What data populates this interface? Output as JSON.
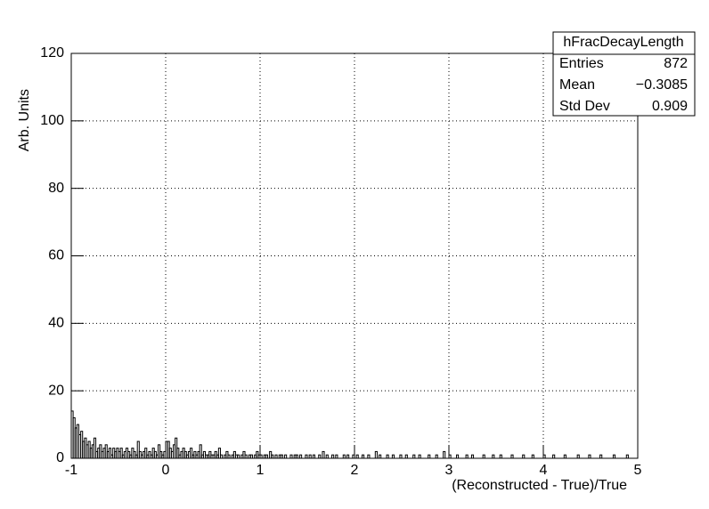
{
  "chart_data": {
    "type": "histogram",
    "xlabel": "(Reconstructed - True)/True",
    "ylabel": "Arb. Units",
    "xlim": [
      -1,
      5
    ],
    "ylim": [
      0,
      120
    ],
    "xticks": [
      -1,
      0,
      1,
      2,
      3,
      4,
      5
    ],
    "yticks": [
      0,
      20,
      40,
      60,
      80,
      100,
      120
    ],
    "grid": true,
    "color": "#000000",
    "stats": {
      "title": "hFracDecayLength",
      "rows": [
        {
          "label": "Entries",
          "value": "872"
        },
        {
          "label": "Mean",
          "value": "−0.3085"
        },
        {
          "label": "Std Dev",
          "value": "0.909"
        }
      ]
    },
    "bins": [
      -1,
      -0.98,
      -0.96,
      -0.94,
      -0.92,
      -0.9,
      -0.88,
      -0.86,
      -0.84,
      -0.82,
      -0.8,
      -0.78,
      -0.76,
      -0.74,
      -0.72,
      -0.7,
      -0.68,
      -0.66,
      -0.64,
      -0.62,
      -0.6,
      -0.58,
      -0.56,
      -0.54,
      -0.52,
      -0.5,
      -0.48,
      -0.46,
      -0.44,
      -0.42,
      -0.4,
      -0.38,
      -0.36,
      -0.34,
      -0.32,
      -0.3,
      -0.28,
      -0.26,
      -0.24,
      -0.22,
      -0.2,
      -0.18,
      -0.16,
      -0.14,
      -0.12,
      -0.1,
      -0.08,
      -0.06,
      -0.04,
      -0.02,
      0,
      0.02,
      0.04,
      0.06,
      0.08,
      0.1,
      0.12,
      0.14,
      0.16,
      0.18,
      0.2,
      0.22,
      0.24,
      0.26,
      0.28,
      0.3,
      0.32,
      0.34,
      0.36,
      0.38,
      0.4,
      0.42,
      0.44,
      0.46,
      0.48,
      0.5,
      0.52,
      0.54,
      0.56,
      0.58,
      0.6,
      0.62,
      0.64,
      0.66,
      0.68,
      0.7,
      0.72,
      0.74,
      0.76,
      0.78,
      0.8,
      0.82,
      0.84,
      0.86,
      0.88,
      0.9,
      0.92,
      0.94,
      0.96,
      0.98,
      1,
      1.02,
      1.04,
      1.06,
      1.08,
      1.1,
      1.12,
      1.14,
      1.16,
      1.18,
      1.2,
      1.22,
      1.24,
      1.26,
      1.28,
      1.3,
      1.32,
      1.34,
      1.36,
      1.38,
      1.4,
      1.42,
      1.44,
      1.46,
      1.48,
      1.5,
      1.52,
      1.54,
      1.56,
      1.58,
      1.6,
      1.62,
      1.64,
      1.66,
      1.68,
      1.7,
      1.72,
      1.74,
      1.76,
      1.78,
      1.8,
      1.82,
      1.84,
      1.86,
      1.88,
      1.9,
      1.92,
      1.94,
      1.96,
      1.98,
      2,
      2.02,
      2.04,
      2.06,
      2.08,
      2.1,
      2.12,
      2.14,
      2.16,
      2.18,
      2.2,
      2.22,
      2.24,
      2.26,
      2.28,
      2.3,
      2.32,
      2.34,
      2.36,
      2.38,
      2.4,
      2.42,
      2.44,
      2.46,
      2.48,
      2.5,
      2.52,
      2.54,
      2.56,
      2.58,
      2.6,
      2.62,
      2.64,
      2.66,
      2.68,
      2.7,
      2.72,
      2.74,
      2.76,
      2.78,
      2.8,
      2.82,
      2.84,
      2.86,
      2.88,
      2.9,
      2.92,
      2.94,
      2.96,
      2.98,
      3,
      3.02,
      3.04,
      3.06,
      3.08,
      3.1,
      3.12,
      3.14,
      3.16,
      3.18,
      3.2,
      3.22,
      3.24,
      3.26,
      3.28,
      3.3,
      3.32,
      3.34,
      3.36,
      3.38,
      3.4,
      3.42,
      3.44,
      3.46,
      3.48,
      3.5,
      3.52,
      3.54,
      3.56,
      3.58,
      3.6,
      3.62,
      3.64,
      3.66,
      3.68,
      3.7,
      3.72,
      3.74,
      3.76,
      3.78,
      3.8,
      3.82,
      3.84,
      3.86,
      3.88,
      3.9,
      3.92,
      3.94,
      3.96,
      3.98,
      4,
      4.02,
      4.04,
      4.06,
      4.08,
      4.1,
      4.12,
      4.14,
      4.16,
      4.18,
      4.2,
      4.22,
      4.24,
      4.26,
      4.28,
      4.3,
      4.32,
      4.34,
      4.36,
      4.38,
      4.4,
      4.42,
      4.44,
      4.46,
      4.48,
      4.5,
      4.52,
      4.54,
      4.56,
      4.58,
      4.6,
      4.62,
      4.64,
      4.66,
      4.68,
      4.7,
      4.72,
      4.74,
      4.76,
      4.78,
      4.8,
      4.82,
      4.84,
      4.86,
      4.88,
      4.9,
      4.92,
      4.94,
      4.96,
      4.98,
      5
    ],
    "values": [
      14,
      12,
      9,
      10,
      7,
      8,
      5,
      6,
      4,
      5,
      3,
      4,
      6,
      2,
      3,
      4,
      2,
      3,
      4,
      2,
      3,
      1,
      3,
      2,
      3,
      2,
      3,
      1,
      2,
      3,
      2,
      1,
      3,
      2,
      1,
      5,
      2,
      1,
      2,
      3,
      1,
      2,
      1,
      3,
      2,
      1,
      4,
      2,
      1,
      2,
      5,
      5,
      3,
      2,
      4,
      6,
      3,
      1,
      2,
      3,
      2,
      1,
      2,
      3,
      1,
      2,
      1,
      2,
      4,
      1,
      2,
      1,
      1,
      2,
      1,
      1,
      2,
      1,
      3,
      1,
      0,
      1,
      2,
      1,
      0,
      1,
      2,
      1,
      1,
      0,
      1,
      2,
      1,
      0,
      1,
      1,
      0,
      1,
      2,
      1,
      1,
      0,
      1,
      1,
      0,
      2,
      1,
      0,
      1,
      0,
      1,
      1,
      0,
      1,
      0,
      0,
      1,
      0,
      1,
      1,
      0,
      1,
      0,
      0,
      1,
      0,
      1,
      0,
      1,
      0,
      0,
      1,
      0,
      2,
      0,
      1,
      0,
      0,
      1,
      0,
      1,
      0,
      0,
      0,
      1,
      0,
      1,
      0,
      0,
      1,
      0,
      1,
      0,
      0,
      1,
      0,
      0,
      1,
      0,
      0,
      0,
      2,
      0,
      1,
      0,
      0,
      0,
      1,
      0,
      0,
      1,
      0,
      0,
      0,
      1,
      0,
      0,
      1,
      0,
      0,
      0,
      1,
      0,
      0,
      1,
      0,
      0,
      0,
      0,
      1,
      0,
      0,
      0,
      1,
      0,
      0,
      0,
      2,
      0,
      0,
      1,
      0,
      0,
      0,
      1,
      0,
      0,
      0,
      0,
      1,
      0,
      0,
      1,
      0,
      0,
      0,
      0,
      0,
      1,
      0,
      0,
      0,
      0,
      1,
      0,
      0,
      0,
      1,
      0,
      0,
      0,
      0,
      0,
      1,
      0,
      0,
      0,
      0,
      0,
      1,
      0,
      0,
      0,
      0,
      1,
      0,
      0,
      0,
      0,
      0,
      1,
      0,
      0,
      0,
      0,
      1,
      0,
      0,
      0,
      0,
      0,
      1,
      0,
      0,
      0,
      0,
      0,
      0,
      1,
      0,
      0,
      0,
      0,
      0,
      1,
      0,
      0,
      0,
      0,
      0,
      1,
      0,
      0,
      0,
      0,
      0,
      0,
      1,
      0,
      0,
      0,
      0,
      0,
      0,
      1,
      0,
      0,
      0,
      0,
      0
    ]
  }
}
